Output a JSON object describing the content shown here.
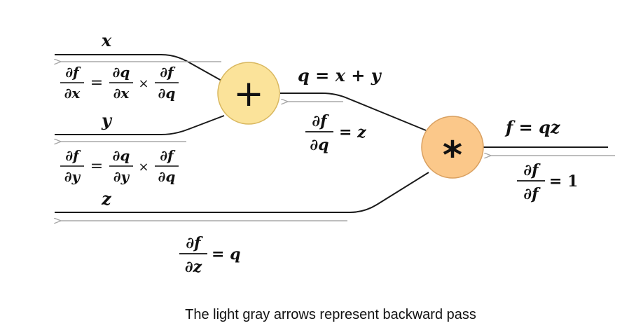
{
  "nodes": {
    "add": {
      "symbol": "+",
      "fill": "#fbe39a",
      "stroke": "#d9b860"
    },
    "mul": {
      "symbol": "*",
      "fill": "#fbc88a",
      "stroke": "#d9a060"
    }
  },
  "colors": {
    "forward_line": "#1a1a1a",
    "backward_arrow": "#a8a8a8"
  },
  "inputs": {
    "x": "x",
    "y": "y",
    "z": "z"
  },
  "labels": {
    "q_eq_1": "q = x + y",
    "f_eq_1": "f = qz",
    "dfdx": {
      "lhs_num": "∂f",
      "lhs_den": "∂x",
      "eq": "=",
      "mid_num": "∂q",
      "mid_den": "∂x",
      "times": "×",
      "rhs_num": "∂f",
      "rhs_den": "∂q"
    },
    "dfdy": {
      "lhs_num": "∂f",
      "lhs_den": "∂y",
      "eq": "=",
      "mid_num": "∂q",
      "mid_den": "∂y",
      "times": "×",
      "rhs_num": "∂f",
      "rhs_den": "∂q"
    },
    "dfdq": {
      "num": "∂f",
      "den": "∂q",
      "rhs": "= z"
    },
    "dfdz": {
      "num": "∂f",
      "den": "∂z",
      "rhs": "= q"
    },
    "dfdf": {
      "num": "∂f",
      "den": "∂f",
      "rhs": "= 1"
    }
  },
  "caption": "The light gray arrows represent backward pass"
}
